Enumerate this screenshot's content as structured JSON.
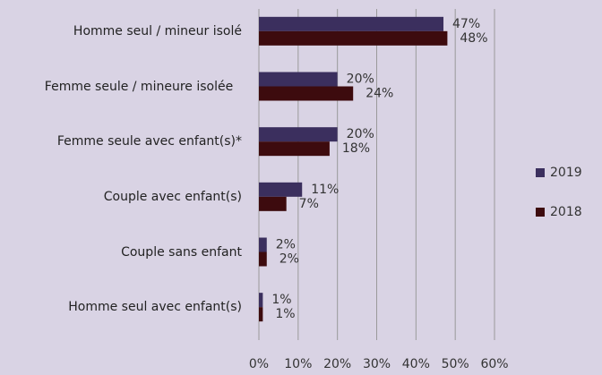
{
  "chart_data": {
    "type": "bar",
    "orientation": "horizontal",
    "categories": [
      "Homme seul / mineur isolé",
      "Femme seule / mineure isolée",
      "Femme seule avec enfant(s)*",
      "Couple avec enfant(s)",
      "Couple sans enfant",
      "Homme seul avec enfant(s)"
    ],
    "series": [
      {
        "name": "2019",
        "color": "#3b2f5e",
        "values": [
          47,
          20,
          20,
          11,
          2,
          1
        ],
        "value_labels": [
          "47%",
          "20%",
          "20%",
          "11%",
          "2%",
          "1%"
        ]
      },
      {
        "name": "2018",
        "color": "#3d0b0e",
        "values": [
          48,
          24,
          18,
          7,
          2,
          1
        ],
        "value_labels": [
          "48%",
          "24%",
          "18%",
          "7%",
          "2%",
          "1%"
        ]
      }
    ],
    "xlim": [
      0,
      60
    ],
    "xticks": [
      {
        "value": 0,
        "label": "0%"
      },
      {
        "value": 10,
        "label": "10%"
      },
      {
        "value": 20,
        "label": "20%"
      },
      {
        "value": 30,
        "label": "30%"
      },
      {
        "value": 40,
        "label": "40%"
      },
      {
        "value": 50,
        "label": "50%"
      },
      {
        "value": 60,
        "label": "60%"
      }
    ],
    "grid": true,
    "legend": "right"
  }
}
